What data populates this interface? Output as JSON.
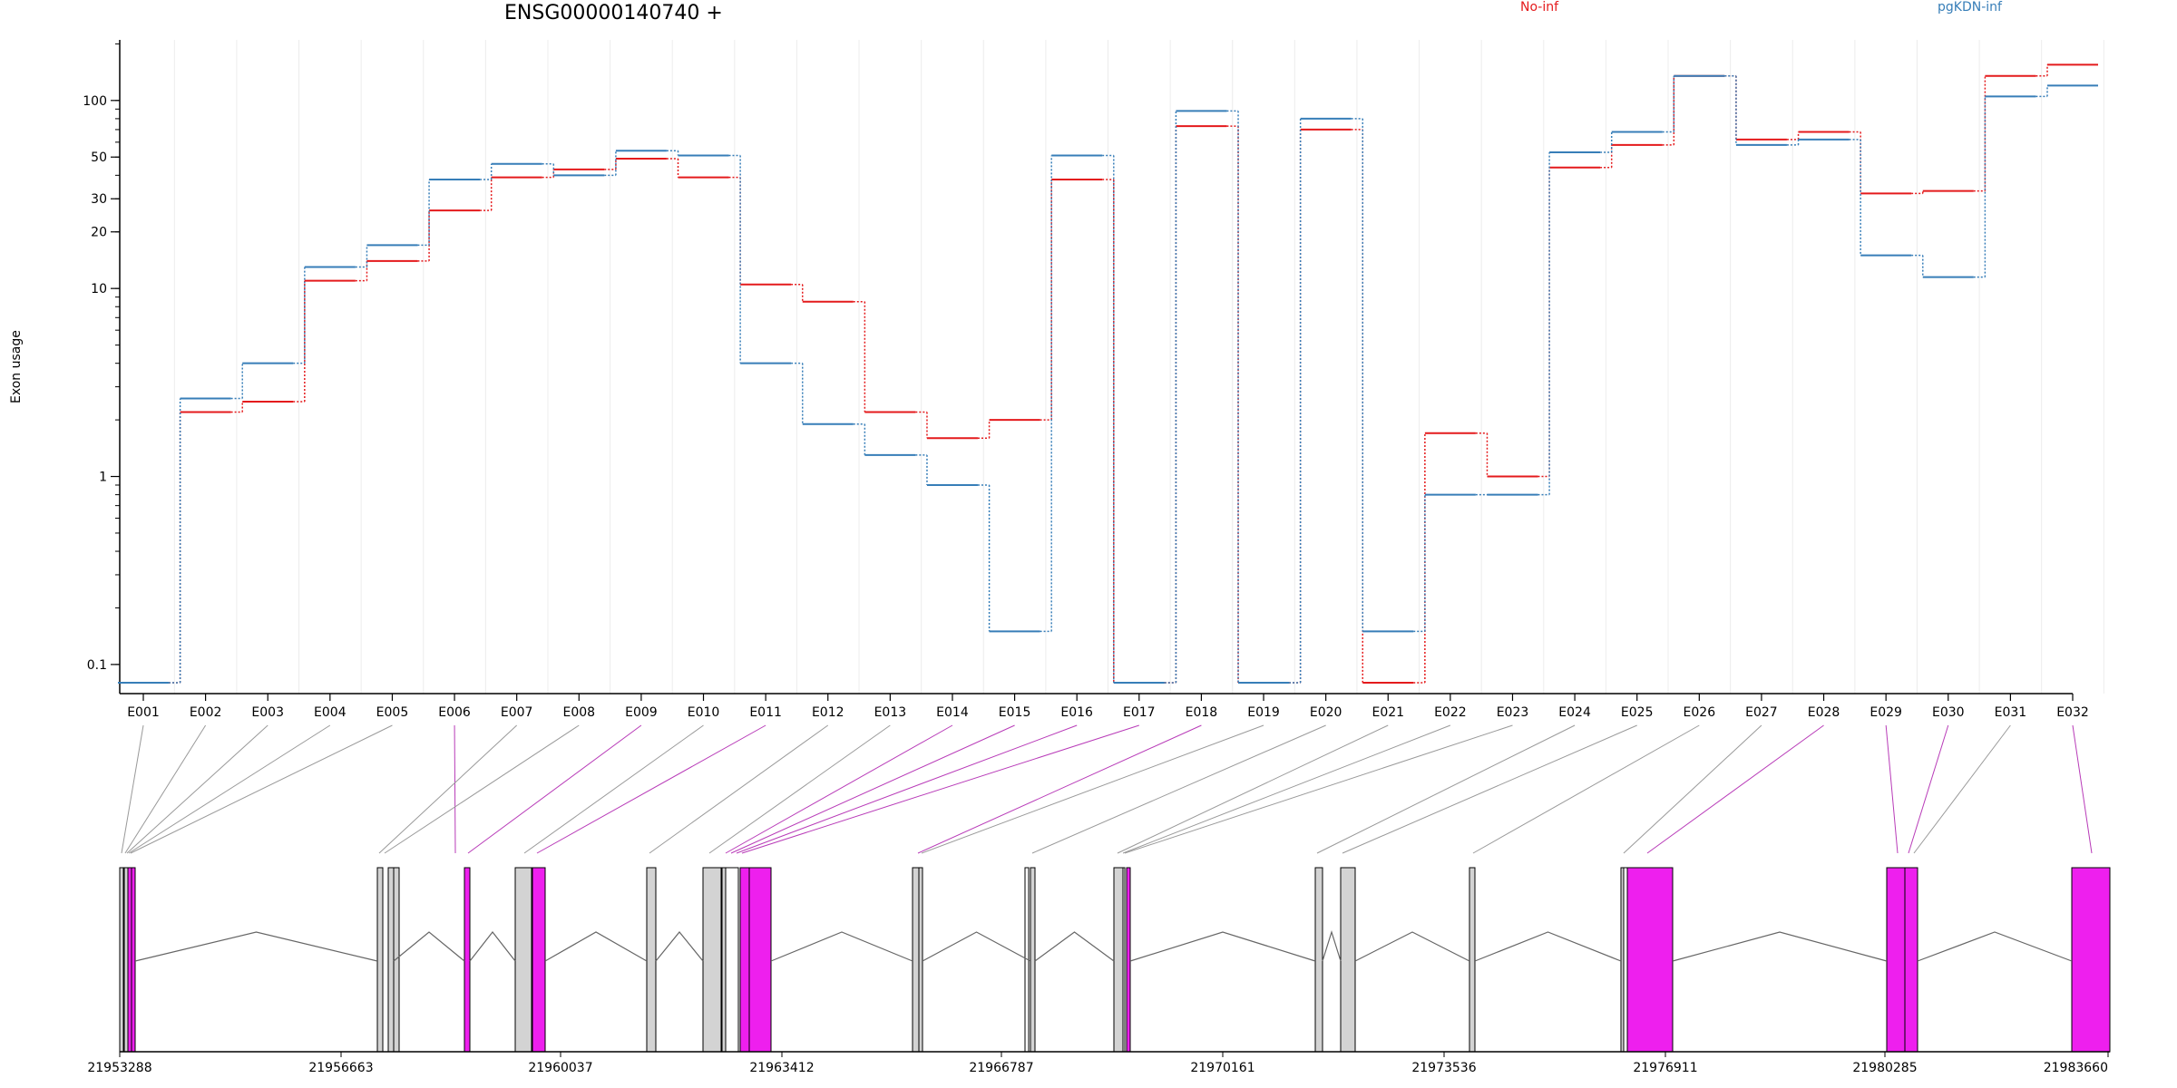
{
  "chart_data": {
    "type": "line",
    "title": "ENSG00000140740 +",
    "ylabel": "Exon usage",
    "xlabel": "",
    "yscale": "log",
    "ylim": [
      0.07,
      210
    ],
    "yticks": [
      0.1,
      1,
      10,
      20,
      30,
      50,
      100
    ],
    "categories": [
      "E001",
      "E002",
      "E003",
      "E004",
      "E005",
      "E006",
      "E007",
      "E008",
      "E009",
      "E010",
      "E011",
      "E012",
      "E013",
      "E014",
      "E015",
      "E016",
      "E017",
      "E018",
      "E019",
      "E020",
      "E021",
      "E022",
      "E023",
      "E024",
      "E025",
      "E026",
      "E027",
      "E028",
      "E029",
      "E030",
      "E031",
      "E032"
    ],
    "series": [
      {
        "name": "No-inf",
        "color": "#e41a1c",
        "values": [
          0.08,
          2.2,
          2.5,
          11,
          14,
          26,
          39,
          43,
          49,
          39,
          10.5,
          8.5,
          2.2,
          1.6,
          2.0,
          38,
          0.08,
          73,
          0.08,
          70,
          0.08,
          1.7,
          1.0,
          44,
          58,
          135,
          62,
          68,
          32,
          33,
          135,
          155
        ]
      },
      {
        "name": "pgKDN-inf",
        "color": "#377eb8",
        "values": [
          0.08,
          2.6,
          4.0,
          13,
          17,
          38,
          46,
          40,
          54,
          51,
          4.0,
          1.9,
          1.3,
          0.9,
          0.15,
          51,
          0.08,
          88,
          0.08,
          80,
          0.15,
          0.8,
          0.8,
          53,
          68,
          135,
          58,
          62,
          15,
          11.5,
          105,
          120
        ]
      }
    ],
    "legend_position": "top",
    "gene_model": {
      "coordinate_labels": [
        "21953288",
        "21956663",
        "21960037",
        "21963412",
        "21966787",
        "21970161",
        "21973536",
        "21976911",
        "21980285",
        "21983660"
      ],
      "exon_highlight": [
        "no",
        "no",
        "no",
        "no",
        "no",
        "yes",
        "no",
        "no",
        "yes",
        "no",
        "yes",
        "no",
        "no",
        "yes",
        "yes",
        "yes",
        "yes",
        "yes",
        "no",
        "no",
        "no",
        "no",
        "no",
        "no",
        "no",
        "no",
        "no",
        "yes",
        "yes",
        "yes",
        "no",
        "yes"
      ],
      "colors": {
        "highlight": "#ee1fee",
        "normal": "#d3d3d3"
      }
    }
  }
}
